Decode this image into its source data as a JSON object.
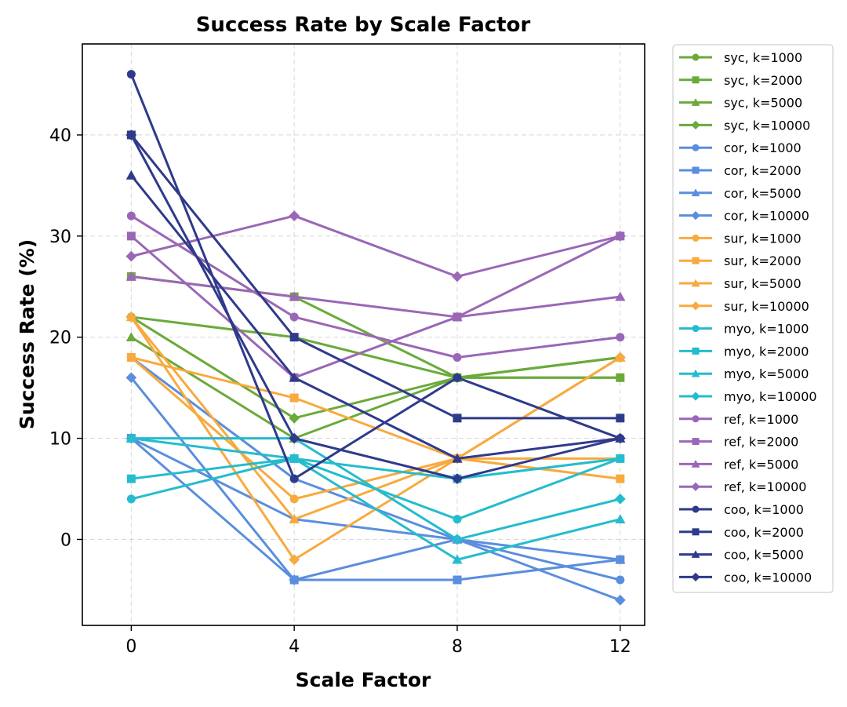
{
  "chart_data": {
    "type": "line",
    "title": "Success Rate by Scale Factor",
    "xlabel": "Scale Factor",
    "ylabel": "Success Rate (%)",
    "x": [
      0,
      4,
      8,
      12
    ],
    "xticks": [
      "0",
      "4",
      "8",
      "12"
    ],
    "yticks": [
      "0",
      "10",
      "20",
      "30",
      "40"
    ],
    "xlim": [
      -1.2,
      12.6
    ],
    "ylim": [
      -8.5,
      49
    ],
    "grid": true,
    "legend_position": "outside-right",
    "series": [
      {
        "name": "syc, k=1000",
        "color": "#6aaa3a",
        "marker": "circle",
        "values": [
          22,
          20,
          16,
          16
        ]
      },
      {
        "name": "syc, k=2000",
        "color": "#6aaa3a",
        "marker": "square",
        "values": [
          26,
          24,
          16,
          16
        ]
      },
      {
        "name": "syc, k=5000",
        "color": "#6aaa3a",
        "marker": "triangle",
        "values": [
          20,
          10,
          16,
          18
        ]
      },
      {
        "name": "syc, k=10000",
        "color": "#6aaa3a",
        "marker": "diamond",
        "values": [
          22,
          12,
          16,
          18
        ]
      },
      {
        "name": "cor, k=1000",
        "color": "#5a8ede",
        "marker": "circle",
        "values": [
          18,
          6,
          0,
          -4
        ]
      },
      {
        "name": "cor, k=2000",
        "color": "#5a8ede",
        "marker": "square",
        "values": [
          10,
          -4,
          -4,
          -2
        ]
      },
      {
        "name": "cor, k=5000",
        "color": "#5a8ede",
        "marker": "triangle",
        "values": [
          10,
          2,
          0,
          -2
        ]
      },
      {
        "name": "cor, k=10000",
        "color": "#5a8ede",
        "marker": "diamond",
        "values": [
          16,
          -4,
          0,
          -6
        ]
      },
      {
        "name": "sur, k=1000",
        "color": "#f8aa3e",
        "marker": "circle",
        "values": [
          18,
          4,
          8,
          8
        ]
      },
      {
        "name": "sur, k=2000",
        "color": "#f8aa3e",
        "marker": "square",
        "values": [
          18,
          14,
          8,
          6
        ]
      },
      {
        "name": "sur, k=5000",
        "color": "#f8aa3e",
        "marker": "triangle",
        "values": [
          22,
          2,
          8,
          18
        ]
      },
      {
        "name": "sur, k=10000",
        "color": "#f8aa3e",
        "marker": "diamond",
        "values": [
          22,
          -2,
          8,
          18
        ]
      },
      {
        "name": "myo, k=1000",
        "color": "#25bccd",
        "marker": "circle",
        "values": [
          4,
          8,
          2,
          8
        ]
      },
      {
        "name": "myo, k=2000",
        "color": "#25bccd",
        "marker": "square",
        "values": [
          6,
          8,
          6,
          8
        ]
      },
      {
        "name": "myo, k=5000",
        "color": "#25bccd",
        "marker": "triangle",
        "values": [
          10,
          8,
          -2,
          2
        ]
      },
      {
        "name": "myo, k=10000",
        "color": "#25bccd",
        "marker": "diamond",
        "values": [
          10,
          10,
          0,
          4
        ]
      },
      {
        "name": "ref, k=1000",
        "color": "#9a67b6",
        "marker": "circle",
        "values": [
          32,
          22,
          18,
          20
        ]
      },
      {
        "name": "ref, k=2000",
        "color": "#9a67b6",
        "marker": "square",
        "values": [
          30,
          16,
          22,
          30
        ]
      },
      {
        "name": "ref, k=5000",
        "color": "#9a67b6",
        "marker": "triangle",
        "values": [
          26,
          24,
          22,
          24
        ]
      },
      {
        "name": "ref, k=10000",
        "color": "#9a67b6",
        "marker": "diamond",
        "values": [
          28,
          32,
          26,
          30
        ]
      },
      {
        "name": "coo, k=1000",
        "color": "#2f3a8c",
        "marker": "circle",
        "values": [
          46,
          6,
          16,
          10
        ]
      },
      {
        "name": "coo, k=2000",
        "color": "#2f3a8c",
        "marker": "square",
        "values": [
          40,
          20,
          12,
          12
        ]
      },
      {
        "name": "coo, k=5000",
        "color": "#2f3a8c",
        "marker": "triangle",
        "values": [
          36,
          16,
          8,
          10
        ]
      },
      {
        "name": "coo, k=10000",
        "color": "#2f3a8c",
        "marker": "diamond",
        "values": [
          40,
          10,
          6,
          10
        ]
      }
    ]
  }
}
